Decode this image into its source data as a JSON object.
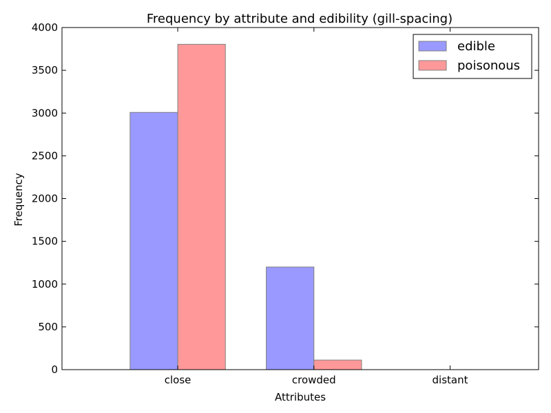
{
  "chart_data": {
    "type": "bar",
    "title": "Frequency by attribute and edibility (gill-spacing)",
    "xlabel": "Attributes",
    "ylabel": "Frequency",
    "categories": [
      "close",
      "crowded",
      "distant"
    ],
    "series": [
      {
        "name": "edible",
        "values": [
          3008,
          1200,
          0
        ],
        "color": "#9999ff"
      },
      {
        "name": "poisonous",
        "values": [
          3804,
          112,
          0
        ],
        "color": "#ff9999"
      }
    ],
    "ylim": [
      0,
      4000
    ],
    "yticks": [
      0,
      500,
      1000,
      1500,
      2000,
      2500,
      3000,
      3500,
      4000
    ],
    "ytick_labels": [
      "0",
      "500",
      "1000",
      "1500",
      "2000",
      "2500",
      "3000",
      "3500",
      "4000"
    ],
    "grid": false,
    "legend_position": "top-right",
    "bar_edge_color": "#808080"
  }
}
